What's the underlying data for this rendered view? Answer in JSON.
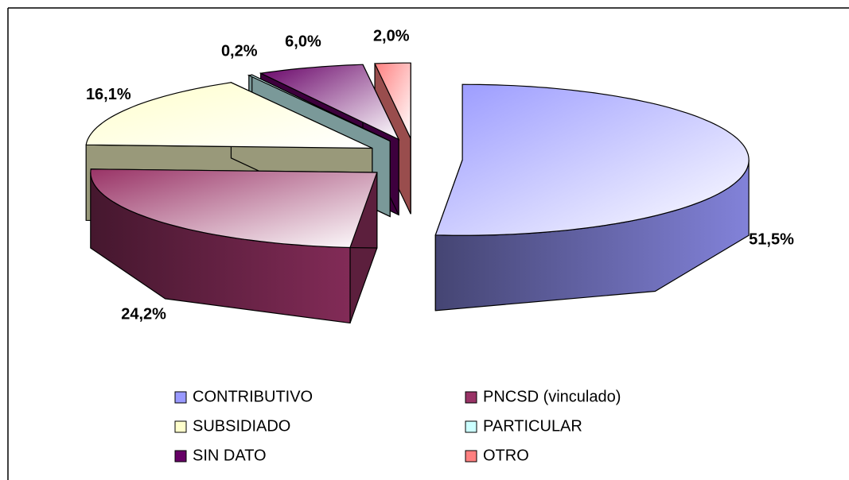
{
  "chart_data": {
    "type": "pie3d",
    "categories": [
      "CONTRIBUTIVO",
      "PNCSD (vinculado)",
      "SUBSIDIADO",
      "PARTICULAR",
      "SIN DATO",
      "OTRO"
    ],
    "values": [
      51.5,
      24.2,
      16.1,
      0.2,
      6.0,
      2.0
    ],
    "value_labels": [
      "51,5%",
      "24,2%",
      "16,1%",
      "0,2%",
      "6,0%",
      "2,0%"
    ],
    "colors": [
      "#9999ff",
      "#993366",
      "#ffffcc",
      "#ccffff",
      "#660066",
      "#ff8080"
    ],
    "legend": "bottom"
  }
}
